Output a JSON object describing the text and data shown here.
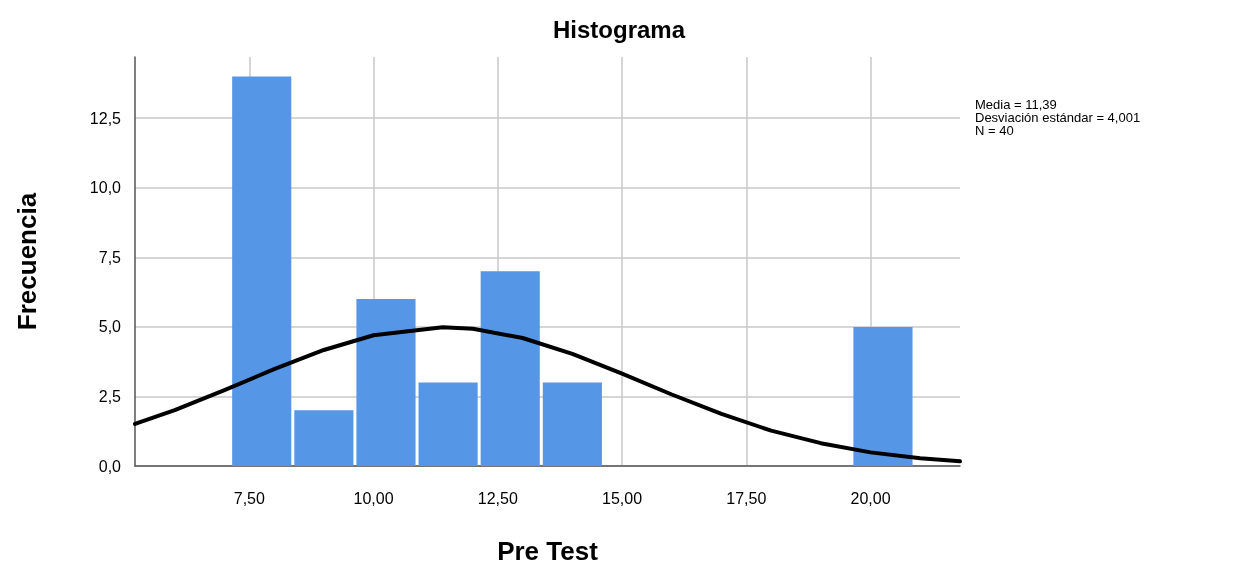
{
  "chart_data": {
    "type": "histogram",
    "title": "Histograma",
    "xlabel": "Pre Test",
    "ylabel": "Frecuencia",
    "annotations": [
      "Media = 11,39",
      "Desviación estándar = 4,001",
      "N = 40"
    ],
    "bins": [
      7.125,
      8.375,
      9.625,
      10.875,
      12.125,
      13.375,
      14.625,
      15.875,
      17.125,
      18.375,
      19.625,
      20.875
    ],
    "values": [
      14,
      2,
      6,
      3,
      7,
      3,
      0,
      0,
      0,
      0,
      5
    ],
    "color": "#5596e6",
    "series": [
      {
        "type": "line",
        "color": "#000000",
        "x": [
          5.2,
          6,
          7,
          8,
          9,
          10,
          11.39,
          12,
          13,
          14,
          15,
          16,
          17,
          18,
          19,
          20,
          21,
          21.8
        ],
        "values": [
          1.51,
          2.01,
          2.73,
          3.48,
          4.17,
          4.7,
          4.99,
          4.93,
          4.6,
          4.03,
          3.32,
          2.57,
          1.87,
          1.27,
          0.82,
          0.49,
          0.28,
          0.17
        ]
      }
    ],
    "xlim": [
      5.2,
      21.8
    ],
    "ylim": [
      0,
      14.7
    ],
    "xticks": [
      {
        "value": 7.5,
        "label": "7,50"
      },
      {
        "value": 10,
        "label": "10,00"
      },
      {
        "value": 12.5,
        "label": "12,50"
      },
      {
        "value": 15,
        "label": "15,00"
      },
      {
        "value": 17.5,
        "label": "17,50"
      },
      {
        "value": 20,
        "label": "20,00"
      }
    ],
    "yticks": [
      {
        "value": 0,
        "label": "0,0"
      },
      {
        "value": 2.5,
        "label": "2,5"
      },
      {
        "value": 5,
        "label": "5,0"
      },
      {
        "value": 7.5,
        "label": "7,5"
      },
      {
        "value": 10,
        "label": "10,0"
      },
      {
        "value": 12.5,
        "label": "12,5"
      }
    ],
    "grid": true,
    "marker": "none",
    "line_style": "solid"
  }
}
